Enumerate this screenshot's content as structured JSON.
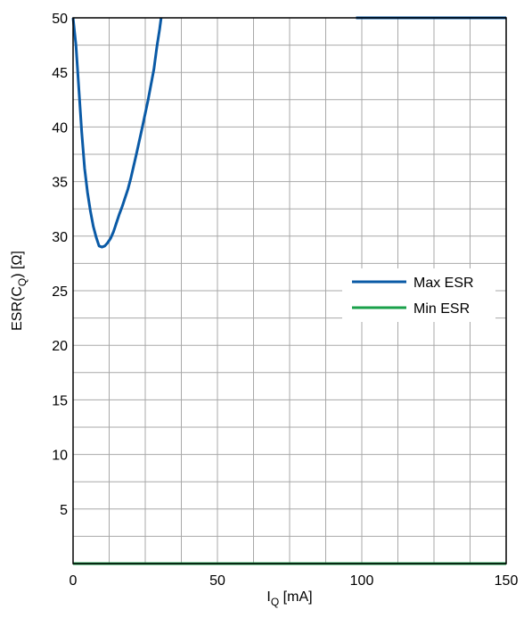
{
  "chart_data": {
    "type": "line",
    "title": "",
    "xlabel": {
      "main": "I",
      "sub": "Q",
      "suffix": " [mA]"
    },
    "ylabel": {
      "main": "ESR(C",
      "sub": "Q",
      "suffix": ") [Ω]"
    },
    "xlim": [
      0,
      150
    ],
    "ylim": [
      0,
      50
    ],
    "x_ticks": [
      0,
      50,
      100,
      150
    ],
    "y_ticks": [
      5,
      10,
      15,
      20,
      25,
      30,
      35,
      40,
      45,
      50
    ],
    "x_grid": [
      0,
      12.5,
      25,
      37.5,
      50,
      62.5,
      75,
      87.5,
      100,
      112.5,
      125,
      137.5,
      150
    ],
    "y_grid": [
      0,
      2.5,
      5,
      7.5,
      10,
      12.5,
      15,
      17.5,
      20,
      22.5,
      25,
      27.5,
      30,
      32.5,
      35,
      37.5,
      40,
      42.5,
      45,
      47.5,
      50
    ],
    "grid": true,
    "legend_position": "right",
    "series": [
      {
        "name": "Max ESR",
        "color": "#0a5aa6",
        "segments": [
          [
            [
              0,
              50
            ],
            [
              1,
              47.5
            ],
            [
              2,
              43.5
            ],
            [
              3,
              39.5
            ],
            [
              4,
              36.2
            ],
            [
              5,
              34
            ],
            [
              6,
              32.3
            ],
            [
              7,
              30.9
            ],
            [
              8,
              29.9
            ],
            [
              9,
              29.1
            ],
            [
              10,
              29.0
            ],
            [
              11,
              29.1
            ],
            [
              12,
              29.4
            ],
            [
              13,
              29.8
            ],
            [
              14,
              30.4
            ],
            [
              15,
              31.2
            ],
            [
              16,
              32.0
            ],
            [
              17,
              32.7
            ],
            [
              18,
              33.5
            ],
            [
              19,
              34.3
            ],
            [
              20,
              35.3
            ],
            [
              22,
              37.6
            ],
            [
              24,
              40.0
            ],
            [
              26,
              42.5
            ],
            [
              28,
              45.3
            ],
            [
              29,
              47.3
            ],
            [
              30,
              49.0
            ],
            [
              30.5,
              50
            ]
          ],
          [
            [
              98,
              50
            ],
            [
              150,
              50
            ]
          ]
        ]
      },
      {
        "name": "Min ESR",
        "color": "#1aa04a",
        "segments": [
          [
            [
              0,
              0
            ],
            [
              150,
              0
            ]
          ]
        ]
      }
    ]
  }
}
